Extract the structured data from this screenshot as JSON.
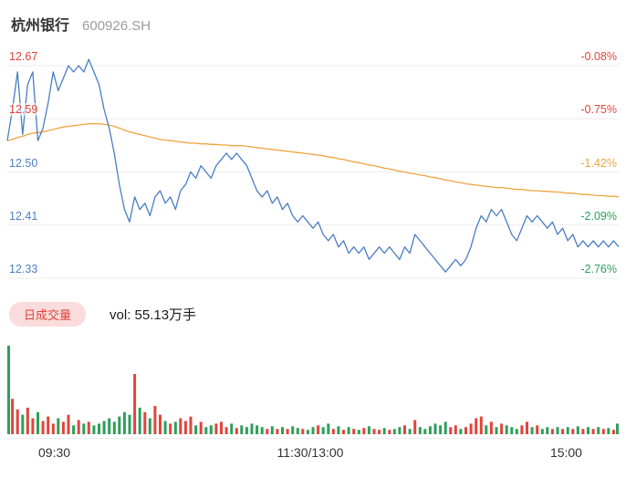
{
  "header": {
    "stock_name": "杭州银行",
    "stock_code": "600926.SH"
  },
  "volume_header": {
    "tab_label": "日成交量",
    "volume_text": "vol: 55.13万手"
  },
  "colors": {
    "up": "#e0453c",
    "down": "#2ca05a",
    "flat": "#b5bcc4",
    "price_line": "#4a7dc4",
    "avg_line": "#f0a43e",
    "grid": "#ececec",
    "pill_bg": "#fbdcdc",
    "pill_text": "#e0453c"
  },
  "chart_data": {
    "type": "line",
    "title": "杭州银行 600926.SH 分时图",
    "prev_close": 12.68,
    "x_axis": {
      "labels": [
        "09:30",
        "11:30/13:00",
        "15:00"
      ]
    },
    "y_axis": {
      "min": 12.33,
      "max": 12.67,
      "rows": [
        {
          "price": "12.67",
          "pct": "-0.08%",
          "price_color": "#e0453c",
          "pct_color": "#e0453c"
        },
        {
          "price": "12.59",
          "pct": "-0.75%",
          "price_color": "#e0453c",
          "pct_color": "#e0453c"
        },
        {
          "price": "12.50",
          "pct": "-1.42%",
          "price_color": "#4e80c4",
          "pct_color": "#f0a43e"
        },
        {
          "price": "12.41",
          "pct": "-2.09%",
          "price_color": "#4e80c4",
          "pct_color": "#2ca05a"
        },
        {
          "price": "12.33",
          "pct": "-2.76%",
          "price_color": "#4e80c4",
          "pct_color": "#2ca05a"
        }
      ]
    },
    "series": [
      {
        "name": "price",
        "color": "#4a7dc4",
        "values": [
          12.55,
          12.6,
          12.66,
          12.56,
          12.64,
          12.66,
          12.55,
          12.57,
          12.61,
          12.66,
          12.63,
          12.65,
          12.67,
          12.66,
          12.67,
          12.66,
          12.68,
          12.66,
          12.64,
          12.6,
          12.57,
          12.53,
          12.48,
          12.44,
          12.42,
          12.46,
          12.44,
          12.45,
          12.43,
          12.46,
          12.47,
          12.45,
          12.46,
          12.44,
          12.47,
          12.48,
          12.5,
          12.49,
          12.51,
          12.5,
          12.49,
          12.51,
          12.52,
          12.53,
          12.52,
          12.53,
          12.52,
          12.51,
          12.49,
          12.47,
          12.46,
          12.47,
          12.45,
          12.46,
          12.44,
          12.45,
          12.43,
          12.42,
          12.43,
          12.42,
          12.41,
          12.42,
          12.4,
          12.39,
          12.4,
          12.38,
          12.39,
          12.37,
          12.38,
          12.37,
          12.38,
          12.36,
          12.37,
          12.38,
          12.37,
          12.38,
          12.37,
          12.36,
          12.38,
          12.37,
          12.4,
          12.39,
          12.38,
          12.37,
          12.36,
          12.35,
          12.34,
          12.35,
          12.36,
          12.35,
          12.36,
          12.38,
          12.41,
          12.43,
          12.42,
          12.44,
          12.43,
          12.44,
          12.42,
          12.4,
          12.39,
          12.41,
          12.43,
          12.42,
          12.43,
          12.42,
          12.41,
          12.42,
          12.4,
          12.41,
          12.39,
          12.4,
          12.38,
          12.39,
          12.38,
          12.39,
          12.38,
          12.39,
          12.38,
          12.39,
          12.38
        ]
      },
      {
        "name": "avg",
        "color": "#f0a43e",
        "values": [
          12.55,
          12.552,
          12.555,
          12.557,
          12.56,
          12.562,
          12.563,
          12.564,
          12.566,
          12.568,
          12.57,
          12.572,
          12.573,
          12.574,
          12.575,
          12.576,
          12.577,
          12.577,
          12.577,
          12.576,
          12.575,
          12.573,
          12.57,
          12.567,
          12.564,
          12.562,
          12.56,
          12.558,
          12.556,
          12.554,
          12.552,
          12.551,
          12.55,
          12.549,
          12.548,
          12.547,
          12.546,
          12.546,
          12.545,
          12.545,
          12.544,
          12.544,
          12.543,
          12.543,
          12.542,
          12.542,
          12.542,
          12.541,
          12.54,
          12.539,
          12.538,
          12.537,
          12.536,
          12.535,
          12.534,
          12.533,
          12.532,
          12.531,
          12.53,
          12.529,
          12.528,
          12.527,
          12.526,
          12.524,
          12.523,
          12.521,
          12.52,
          12.518,
          12.516,
          12.515,
          12.513,
          12.511,
          12.51,
          12.508,
          12.506,
          12.505,
          12.503,
          12.501,
          12.5,
          12.498,
          12.497,
          12.495,
          12.494,
          12.492,
          12.491,
          12.489,
          12.487,
          12.486,
          12.484,
          12.483,
          12.481,
          12.48,
          12.479,
          12.478,
          12.477,
          12.476,
          12.475,
          12.475,
          12.474,
          12.473,
          12.472,
          12.472,
          12.471,
          12.47,
          12.47,
          12.469,
          12.469,
          12.468,
          12.468,
          12.467,
          12.466,
          12.466,
          12.465,
          12.464,
          12.464,
          12.463,
          12.462,
          12.462,
          12.461,
          12.461,
          12.46
        ]
      }
    ],
    "volume": {
      "values": [
        100,
        40,
        28,
        22,
        30,
        18,
        25,
        15,
        20,
        12,
        18,
        14,
        22,
        10,
        16,
        12,
        14,
        10,
        12,
        15,
        18,
        14,
        20,
        25,
        22,
        68,
        30,
        25,
        18,
        32,
        22,
        15,
        12,
        14,
        18,
        15,
        20,
        10,
        14,
        8,
        10,
        12,
        14,
        8,
        12,
        7,
        10,
        8,
        12,
        10,
        8,
        6,
        9,
        6,
        8,
        6,
        9,
        7,
        6,
        5,
        8,
        10,
        8,
        12,
        6,
        9,
        5,
        8,
        6,
        5,
        7,
        9,
        6,
        5,
        7,
        5,
        6,
        8,
        10,
        6,
        16,
        8,
        6,
        9,
        12,
        10,
        14,
        8,
        10,
        6,
        8,
        12,
        18,
        20,
        10,
        14,
        8,
        12,
        10,
        8,
        6,
        10,
        14,
        8,
        10,
        6,
        8,
        6,
        8,
        6,
        8,
        6,
        9,
        6,
        8,
        6,
        8,
        6,
        7,
        5,
        12
      ]
    }
  }
}
